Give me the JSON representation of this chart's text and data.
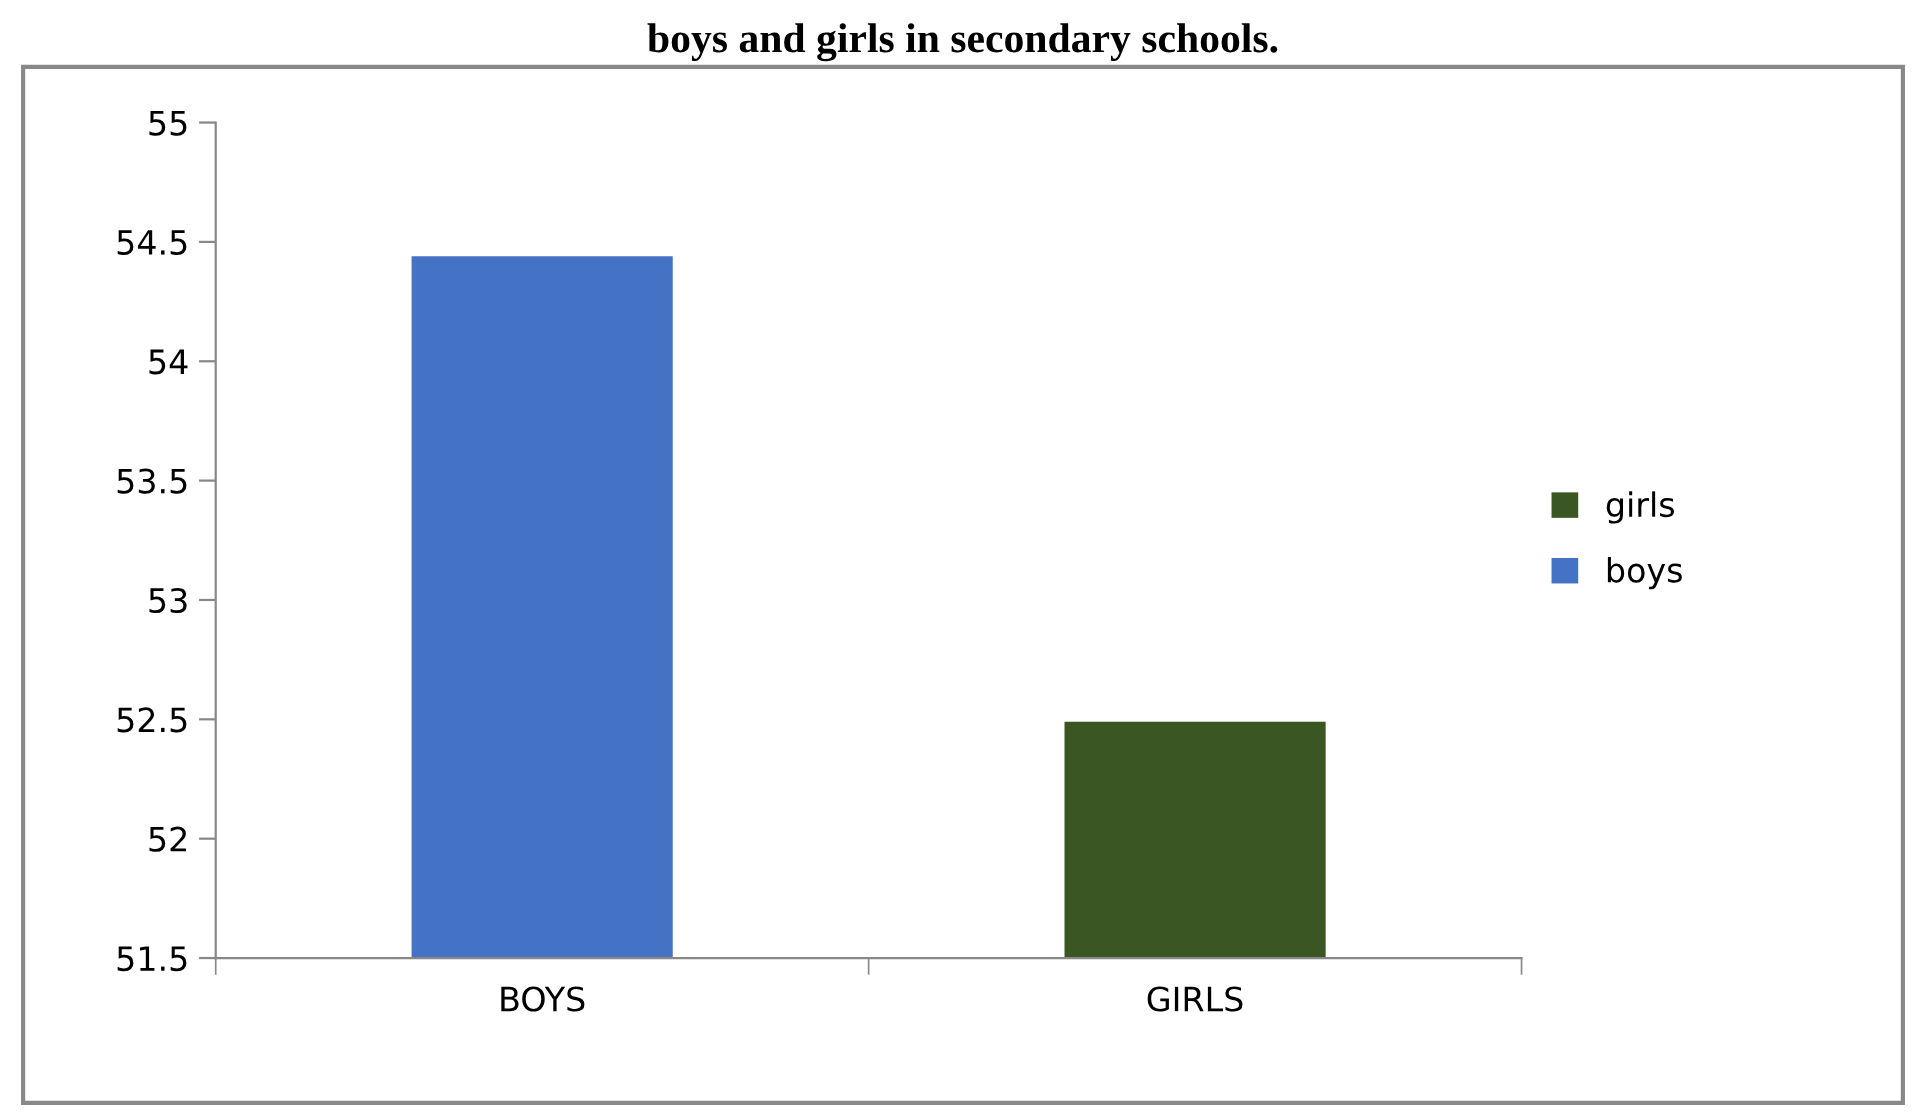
{
  "chart_data": {
    "type": "bar",
    "title": "boys and girls in secondary schools.",
    "categories": [
      "BOYS",
      "GIRLS"
    ],
    "series": [
      {
        "name": "girls",
        "color": "#3a5622",
        "values": [
          null,
          52.49
        ]
      },
      {
        "name": "boys",
        "color": "#4472c4",
        "values": [
          54.44,
          null
        ]
      }
    ],
    "ylim": [
      51.5,
      55
    ],
    "yticks": [
      51.5,
      52,
      52.5,
      53,
      53.5,
      54,
      54.5,
      55
    ],
    "grid": false,
    "legend": "right"
  }
}
